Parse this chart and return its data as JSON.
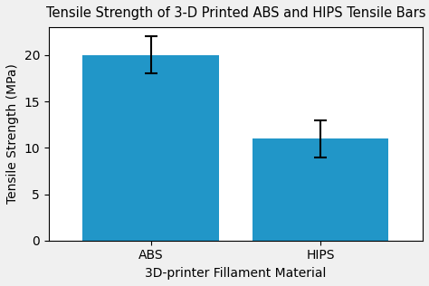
{
  "categories": [
    "ABS",
    "HIPS"
  ],
  "values": [
    20.0,
    11.0
  ],
  "errors_upper": [
    2.0,
    2.0
  ],
  "errors_lower": [
    2.0,
    2.0
  ],
  "bar_color": "#2196c8",
  "title": "Tensile Strength of 3-D Printed ABS and HIPS Tensile Bars",
  "xlabel": "3D-printer Fillament Material",
  "ylabel": "Tensile Strength (MPa)",
  "ylim": [
    0,
    23
  ],
  "yticks": [
    0,
    5,
    10,
    15,
    20
  ],
  "title_fontsize": 10.5,
  "label_fontsize": 10,
  "tick_fontsize": 10,
  "bar_width": 0.8,
  "capsize": 5,
  "background_color": "#f0f0f0"
}
